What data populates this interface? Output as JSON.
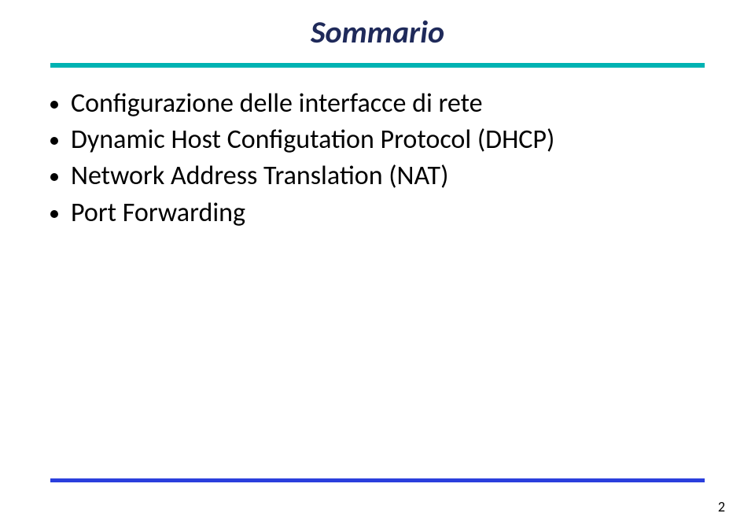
{
  "title": "Sommario",
  "title_color": "#1f2a5a",
  "title_fontsize": 40,
  "title_italic": true,
  "rules": {
    "top": {
      "color": "#00b3b3",
      "thickness": 6
    },
    "bottom": {
      "color": "#2a3fdd",
      "thickness": 5
    }
  },
  "bullet": {
    "marker_color": "#000000",
    "marker_diameter": 10,
    "text_fontsize": 34,
    "items": [
      "Configurazione delle interfacce di rete",
      "Dynamic Host Configutation Protocol (DHCP)",
      "Network Address Translation (NAT)",
      "Port Forwarding"
    ]
  },
  "page_number": "2",
  "background_color": "#ffffff"
}
